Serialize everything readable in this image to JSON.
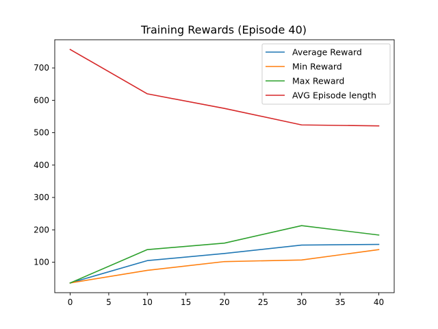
{
  "chart_data": {
    "type": "line",
    "title": "Training Rewards (Episode 40)",
    "xlabel": "",
    "ylabel": "",
    "x": [
      0,
      10,
      20,
      30,
      40
    ],
    "xlim": [
      -2,
      42
    ],
    "ylim": [
      6,
      787
    ],
    "xticks": [
      0,
      5,
      10,
      15,
      20,
      25,
      30,
      35,
      40
    ],
    "yticks": [
      100,
      200,
      300,
      400,
      500,
      600,
      700
    ],
    "grid": false,
    "legend_position": "top-right",
    "series": [
      {
        "name": "Average Reward",
        "color": "#1f77b4",
        "values": [
          36,
          105,
          127,
          153,
          155
        ]
      },
      {
        "name": "Min Reward",
        "color": "#ff7f0e",
        "values": [
          36,
          75,
          102,
          107,
          139
        ]
      },
      {
        "name": "Max Reward",
        "color": "#2ca02c",
        "values": [
          36,
          139,
          159,
          213,
          184
        ]
      },
      {
        "name": "AVG Episode length",
        "color": "#d62728",
        "values": [
          757,
          620,
          575,
          524,
          521
        ]
      }
    ]
  }
}
